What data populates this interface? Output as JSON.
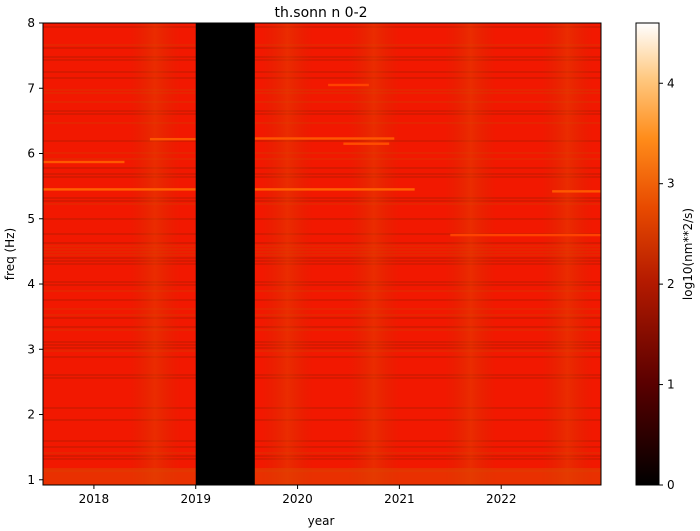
{
  "chart_data": {
    "type": "heatmap",
    "title": "th.sonn n 0-2",
    "xlabel": "year",
    "ylabel": "freq (Hz)",
    "xlim": [
      2017.5,
      2022.98
    ],
    "ylim": [
      0.92,
      8.0
    ],
    "xticks": [
      {
        "value": 2018,
        "label": "2018"
      },
      {
        "value": 2019,
        "label": "2019"
      },
      {
        "value": 2020,
        "label": "2020"
      },
      {
        "value": 2021,
        "label": "2021"
      },
      {
        "value": 2022,
        "label": "2022"
      }
    ],
    "yticks": [
      {
        "value": 1,
        "label": "1"
      },
      {
        "value": 2,
        "label": "2"
      },
      {
        "value": 3,
        "label": "3"
      },
      {
        "value": 4,
        "label": "4"
      },
      {
        "value": 5,
        "label": "5"
      },
      {
        "value": 6,
        "label": "6"
      },
      {
        "value": 7,
        "label": "7"
      },
      {
        "value": 8,
        "label": "8"
      }
    ],
    "colorbar": {
      "label": "log10(nm**2/s)",
      "range": [
        0,
        4.6
      ],
      "ticks": [
        {
          "value": 0,
          "label": "0"
        },
        {
          "value": 1,
          "label": "1"
        },
        {
          "value": 2,
          "label": "2"
        },
        {
          "value": 3,
          "label": "3"
        },
        {
          "value": 4,
          "label": "4"
        }
      ],
      "colormap": "gist_heat"
    },
    "background_level": 2.3,
    "gaps": [
      {
        "x_start": 2019.0,
        "x_end": 2019.58,
        "value": 0
      }
    ],
    "lines": [
      {
        "freq": 5.45,
        "x_start": 2017.5,
        "x_end": 2019.0,
        "value": 3.0
      },
      {
        "freq": 5.45,
        "x_start": 2019.58,
        "x_end": 2021.15,
        "value": 3.0
      },
      {
        "freq": 5.87,
        "x_start": 2017.5,
        "x_end": 2018.3,
        "value": 2.9
      },
      {
        "freq": 6.22,
        "x_start": 2018.55,
        "x_end": 2019.0,
        "value": 2.9
      },
      {
        "freq": 6.23,
        "x_start": 2019.58,
        "x_end": 2020.95,
        "value": 2.9
      },
      {
        "freq": 6.15,
        "x_start": 2020.45,
        "x_end": 2020.9,
        "value": 2.8
      },
      {
        "freq": 5.42,
        "x_start": 2022.5,
        "x_end": 2022.98,
        "value": 2.9
      },
      {
        "freq": 4.75,
        "x_start": 2021.5,
        "x_end": 2022.98,
        "value": 2.7
      },
      {
        "freq": 7.05,
        "x_start": 2020.3,
        "x_end": 2020.7,
        "value": 2.7
      }
    ]
  }
}
